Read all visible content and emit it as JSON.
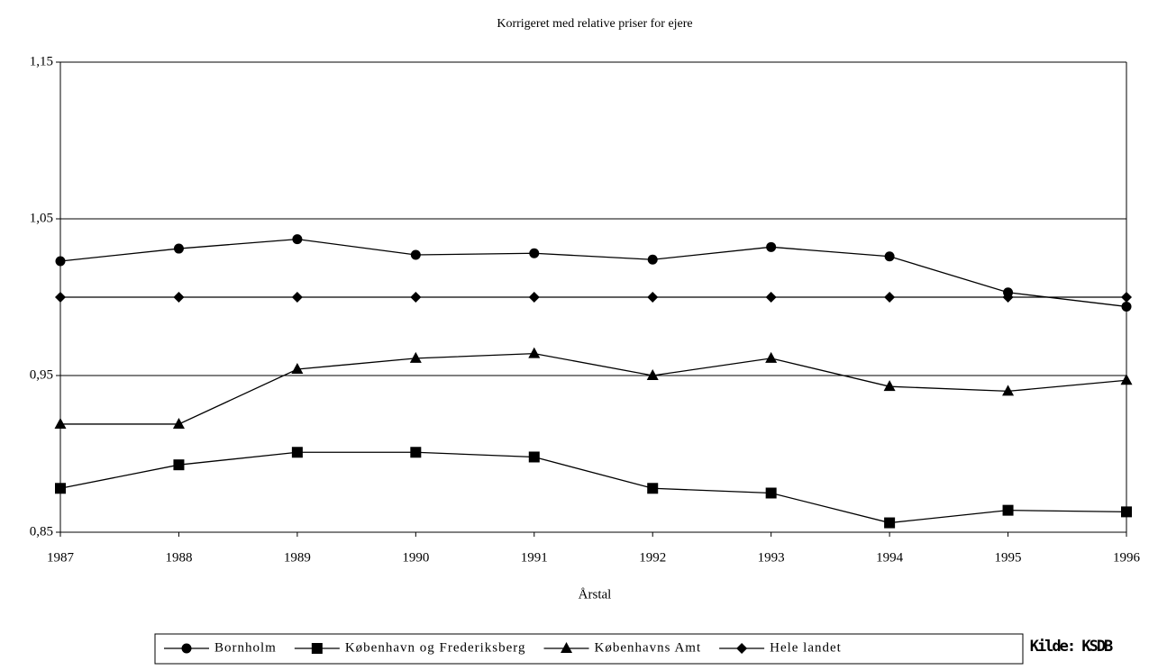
{
  "chart_data": {
    "type": "line",
    "title": "Korrigeret med relative priser for ejere",
    "x_label": "Årstal",
    "source": "Kilde: KSDB",
    "x": [
      1987,
      1988,
      1989,
      1990,
      1991,
      1992,
      1993,
      1994,
      1995,
      1996
    ],
    "xlim": [
      1987,
      1996
    ],
    "xticks": [
      1987,
      1988,
      1989,
      1990,
      1991,
      1992,
      1993,
      1994,
      1995,
      1996
    ],
    "ylim": [
      0.85,
      1.15
    ],
    "yticks": [
      {
        "value": 0.85,
        "label": "0,85"
      },
      {
        "value": 0.95,
        "label": "0,95"
      },
      {
        "value": 1.05,
        "label": "1,05"
      },
      {
        "value": 1.15,
        "label": "1,15"
      }
    ],
    "grid": true,
    "legend": "bottom",
    "series": [
      {
        "name": "Bornholm",
        "color": "#000000",
        "marker": "circle",
        "values": [
          1.023,
          1.031,
          1.037,
          1.027,
          1.028,
          1.024,
          1.032,
          1.026,
          1.003,
          0.994
        ]
      },
      {
        "name": "København og Frederiksberg",
        "color": "#000000",
        "marker": "square",
        "values": [
          0.878,
          0.893,
          0.901,
          0.901,
          0.898,
          0.878,
          0.875,
          0.856,
          0.864,
          0.863
        ]
      },
      {
        "name": "Københavns Amt",
        "color": "#000000",
        "marker": "triangle",
        "values": [
          0.919,
          0.919,
          0.954,
          0.961,
          0.964,
          0.95,
          0.961,
          0.943,
          0.94,
          0.947
        ]
      },
      {
        "name": "Hele landet",
        "color": "#000000",
        "marker": "diamond",
        "values": [
          1.0,
          1.0,
          1.0,
          1.0,
          1.0,
          1.0,
          1.0,
          1.0,
          1.0,
          1.0
        ]
      }
    ]
  }
}
